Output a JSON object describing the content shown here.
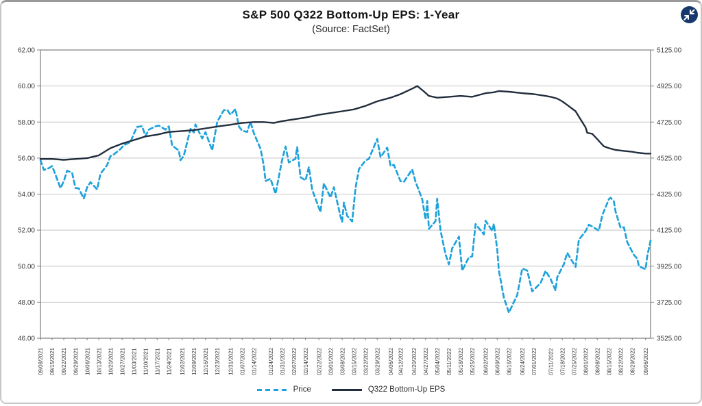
{
  "colors": {
    "grid": "#c3c3c3",
    "axis": "#7d7d7d",
    "tick_text": "#3b3b3b",
    "price": "#1EA2DB",
    "eps": "#222E3E",
    "icon_bg": "#17386E"
  },
  "controls": {
    "collapse_tooltip": "collapse"
  },
  "legend": [
    {
      "label": "Price",
      "style": "dashed",
      "color": "#1EA2DB"
    },
    {
      "label": "Q322 Bottom-Up EPS",
      "style": "solid",
      "color": "#222E3E"
    }
  ],
  "chart_data": {
    "type": "line",
    "title": "S&P 500 Q322 Bottom-Up EPS: 1-Year",
    "subtitle": "(Source: FactSet)",
    "grid": "horizontal",
    "legend_position": "bottom",
    "x_axis": {
      "range": [
        "09/08/2021",
        "09/09/2022"
      ],
      "ticks": [
        "09/08/2021",
        "09/15/2021",
        "09/22/2021",
        "09/29/2021",
        "10/06/2021",
        "10/13/2021",
        "10/20/2021",
        "10/27/2021",
        "11/03/2021",
        "11/10/2021",
        "11/17/2021",
        "11/24/2021",
        "12/02/2021",
        "12/09/2021",
        "12/16/2021",
        "12/23/2021",
        "12/31/2021",
        "01/07/2022",
        "01/14/2022",
        "01/24/2022",
        "01/31/2022",
        "02/07/2022",
        "02/14/2022",
        "02/22/2022",
        "03/01/2022",
        "03/08/2022",
        "03/15/2022",
        "03/22/2022",
        "03/29/2022",
        "04/06/2022",
        "04/12/2022",
        "04/20/2022",
        "04/27/2022",
        "05/04/2022",
        "05/11/2022",
        "05/18/2022",
        "05/25/2022",
        "06/02/2022",
        "06/09/2022",
        "06/16/2022",
        "06/24/2022",
        "07/01/2022",
        "07/11/2022",
        "07/18/2022",
        "07/25/2022",
        "08/01/2022",
        "08/08/2022",
        "08/15/2022",
        "08/22/2022",
        "08/29/2022",
        "09/06/2022"
      ]
    },
    "y_left": {
      "series": "Q322 Bottom-Up EPS",
      "range": [
        46,
        62
      ],
      "ticks": [
        "62.00",
        "60.00",
        "58.00",
        "56.00",
        "54.00",
        "52.00",
        "50.00",
        "48.00",
        "46.00"
      ]
    },
    "y_right": {
      "series": "Price",
      "range": [
        3525,
        5125
      ],
      "ticks": [
        "5125.00",
        "4925.00",
        "4725.00",
        "4525.00",
        "4325.00",
        "4125.00",
        "3925.00",
        "3725.00",
        "3525.00"
      ]
    },
    "series": [
      {
        "name": "Price",
        "axis": "right",
        "color": "#1EA2DB",
        "dash": true,
        "width": 2.7,
        "points": [
          [
            "09/08/2021",
            4514
          ],
          [
            "09/10/2021",
            4459
          ],
          [
            "09/13/2021",
            4469
          ],
          [
            "09/15/2021",
            4481
          ],
          [
            "09/17/2021",
            4433
          ],
          [
            "09/20/2021",
            4358
          ],
          [
            "09/22/2021",
            4396
          ],
          [
            "09/24/2021",
            4455
          ],
          [
            "09/27/2021",
            4443
          ],
          [
            "09/29/2021",
            4359
          ],
          [
            "10/01/2021",
            4357
          ],
          [
            "10/04/2021",
            4300
          ],
          [
            "10/06/2021",
            4363
          ],
          [
            "10/08/2021",
            4391
          ],
          [
            "10/12/2021",
            4351
          ],
          [
            "10/14/2021",
            4438
          ],
          [
            "10/18/2021",
            4486
          ],
          [
            "10/20/2021",
            4536
          ],
          [
            "10/22/2021",
            4545
          ],
          [
            "10/26/2021",
            4575
          ],
          [
            "10/28/2021",
            4596
          ],
          [
            "11/01/2021",
            4614
          ],
          [
            "11/03/2021",
            4660
          ],
          [
            "11/05/2021",
            4698
          ],
          [
            "11/08/2021",
            4702
          ],
          [
            "11/10/2021",
            4647
          ],
          [
            "11/12/2021",
            4683
          ],
          [
            "11/16/2021",
            4701
          ],
          [
            "11/18/2021",
            4705
          ],
          [
            "11/22/2021",
            4683
          ],
          [
            "11/24/2021",
            4701
          ],
          [
            "11/26/2021",
            4595
          ],
          [
            "11/30/2021",
            4567
          ],
          [
            "12/01/2021",
            4513
          ],
          [
            "12/03/2021",
            4538
          ],
          [
            "12/07/2021",
            4687
          ],
          [
            "12/09/2021",
            4667
          ],
          [
            "12/10/2021",
            4712
          ],
          [
            "12/14/2021",
            4634
          ],
          [
            "12/16/2021",
            4669
          ],
          [
            "12/20/2021",
            4568
          ],
          [
            "12/23/2021",
            4726
          ],
          [
            "12/27/2021",
            4791
          ],
          [
            "12/29/2021",
            4793
          ],
          [
            "12/31/2021",
            4766
          ],
          [
            "01/03/2022",
            4797
          ],
          [
            "01/05/2022",
            4701
          ],
          [
            "01/07/2022",
            4677
          ],
          [
            "01/10/2022",
            4670
          ],
          [
            "01/12/2022",
            4726
          ],
          [
            "01/14/2022",
            4663
          ],
          [
            "01/18/2022",
            4577
          ],
          [
            "01/20/2022",
            4483
          ],
          [
            "01/21/2022",
            4398
          ],
          [
            "01/24/2022",
            4410
          ],
          [
            "01/27/2022",
            4327
          ],
          [
            "01/31/2022",
            4516
          ],
          [
            "02/02/2022",
            4589
          ],
          [
            "02/04/2022",
            4501
          ],
          [
            "02/08/2022",
            4521
          ],
          [
            "02/09/2022",
            4587
          ],
          [
            "02/11/2022",
            4419
          ],
          [
            "02/14/2022",
            4401
          ],
          [
            "02/16/2022",
            4475
          ],
          [
            "02/18/2022",
            4349
          ],
          [
            "02/23/2022",
            4225
          ],
          [
            "02/25/2022",
            4385
          ],
          [
            "03/01/2022",
            4306
          ],
          [
            "03/03/2022",
            4363
          ],
          [
            "03/07/2022",
            4201
          ],
          [
            "03/08/2022",
            4170
          ],
          [
            "03/09/2022",
            4278
          ],
          [
            "03/11/2022",
            4204
          ],
          [
            "03/14/2022",
            4173
          ],
          [
            "03/16/2022",
            4358
          ],
          [
            "03/18/2022",
            4463
          ],
          [
            "03/22/2022",
            4512
          ],
          [
            "03/24/2022",
            4520
          ],
          [
            "03/29/2022",
            4631
          ],
          [
            "03/31/2022",
            4530
          ],
          [
            "04/04/2022",
            4583
          ],
          [
            "04/06/2022",
            4481
          ],
          [
            "04/08/2022",
            4488
          ],
          [
            "04/12/2022",
            4397
          ],
          [
            "04/14/2022",
            4393
          ],
          [
            "04/19/2022",
            4462
          ],
          [
            "04/21/2022",
            4394
          ],
          [
            "04/25/2022",
            4296
          ],
          [
            "04/27/2022",
            4184
          ],
          [
            "04/28/2022",
            4287
          ],
          [
            "04/29/2022",
            4132
          ],
          [
            "05/03/2022",
            4175
          ],
          [
            "05/04/2022",
            4300
          ],
          [
            "05/06/2022",
            4123
          ],
          [
            "05/09/2022",
            3991
          ],
          [
            "05/11/2022",
            3935
          ],
          [
            "05/13/2022",
            4024
          ],
          [
            "05/17/2022",
            4089
          ],
          [
            "05/19/2022",
            3900
          ],
          [
            "05/23/2022",
            3974
          ],
          [
            "05/25/2022",
            3979
          ],
          [
            "05/27/2022",
            4158
          ],
          [
            "06/01/2022",
            4101
          ],
          [
            "06/02/2022",
            4177
          ],
          [
            "06/06/2022",
            4121
          ],
          [
            "06/07/2022",
            4160
          ],
          [
            "06/09/2022",
            4017
          ],
          [
            "06/10/2022",
            3901
          ],
          [
            "06/13/2022",
            3750
          ],
          [
            "06/16/2022",
            3667
          ],
          [
            "06/21/2022",
            3765
          ],
          [
            "06/24/2022",
            3912
          ],
          [
            "06/27/2022",
            3900
          ],
          [
            "06/30/2022",
            3785
          ],
          [
            "07/05/2022",
            3831
          ],
          [
            "07/08/2022",
            3899
          ],
          [
            "07/11/2022",
            3854
          ],
          [
            "07/14/2022",
            3790
          ],
          [
            "07/15/2022",
            3863
          ],
          [
            "07/19/2022",
            3937
          ],
          [
            "07/21/2022",
            3999
          ],
          [
            "07/26/2022",
            3921
          ],
          [
            "07/28/2022",
            4072
          ],
          [
            "08/01/2022",
            4119
          ],
          [
            "08/03/2022",
            4155
          ],
          [
            "08/05/2022",
            4145
          ],
          [
            "08/09/2022",
            4122
          ],
          [
            "08/11/2022",
            4207
          ],
          [
            "08/15/2022",
            4297
          ],
          [
            "08/16/2022",
            4305
          ],
          [
            "08/18/2022",
            4284
          ],
          [
            "08/19/2022",
            4228
          ],
          [
            "08/22/2022",
            4138
          ],
          [
            "08/24/2022",
            4141
          ],
          [
            "08/26/2022",
            4058
          ],
          [
            "08/30/2022",
            3987
          ],
          [
            "09/01/2022",
            3967
          ],
          [
            "09/02/2022",
            3924
          ],
          [
            "09/06/2022",
            3908
          ],
          [
            "09/07/2022",
            3980
          ],
          [
            "09/09/2022",
            4067
          ]
        ]
      },
      {
        "name": "Q322 Bottom-Up EPS",
        "axis": "left",
        "color": "#222E3E",
        "dash": false,
        "width": 2.4,
        "points": [
          [
            "09/08/2021",
            55.95
          ],
          [
            "09/15/2021",
            55.95
          ],
          [
            "09/22/2021",
            55.9
          ],
          [
            "09/29/2021",
            55.95
          ],
          [
            "10/06/2021",
            56.0
          ],
          [
            "10/13/2021",
            56.15
          ],
          [
            "10/20/2021",
            56.55
          ],
          [
            "10/27/2021",
            56.8
          ],
          [
            "11/03/2021",
            57.0
          ],
          [
            "11/10/2021",
            57.2
          ],
          [
            "11/17/2021",
            57.3
          ],
          [
            "11/24/2021",
            57.45
          ],
          [
            "12/02/2021",
            57.5
          ],
          [
            "12/09/2021",
            57.55
          ],
          [
            "12/16/2021",
            57.65
          ],
          [
            "12/23/2021",
            57.75
          ],
          [
            "12/31/2021",
            57.85
          ],
          [
            "01/07/2022",
            57.95
          ],
          [
            "01/14/2022",
            58.0
          ],
          [
            "01/20/2022",
            58.0
          ],
          [
            "01/26/2022",
            57.95
          ],
          [
            "01/31/2022",
            58.05
          ],
          [
            "02/07/2022",
            58.15
          ],
          [
            "02/14/2022",
            58.25
          ],
          [
            "02/22/2022",
            58.4
          ],
          [
            "03/01/2022",
            58.5
          ],
          [
            "03/08/2022",
            58.6
          ],
          [
            "03/15/2022",
            58.7
          ],
          [
            "03/22/2022",
            58.9
          ],
          [
            "03/29/2022",
            59.15
          ],
          [
            "04/06/2022",
            59.35
          ],
          [
            "04/12/2022",
            59.55
          ],
          [
            "04/20/2022",
            59.9
          ],
          [
            "04/22/2022",
            60.0
          ],
          [
            "04/26/2022",
            59.7
          ],
          [
            "04/29/2022",
            59.45
          ],
          [
            "05/04/2022",
            59.35
          ],
          [
            "05/11/2022",
            59.4
          ],
          [
            "05/18/2022",
            59.45
          ],
          [
            "05/25/2022",
            59.4
          ],
          [
            "06/02/2022",
            59.6
          ],
          [
            "06/07/2022",
            59.65
          ],
          [
            "06/10/2022",
            59.72
          ],
          [
            "06/16/2022",
            59.68
          ],
          [
            "06/24/2022",
            59.6
          ],
          [
            "07/01/2022",
            59.55
          ],
          [
            "07/08/2022",
            59.45
          ],
          [
            "07/11/2022",
            59.4
          ],
          [
            "07/15/2022",
            59.3
          ],
          [
            "07/18/2022",
            59.15
          ],
          [
            "07/21/2022",
            58.95
          ],
          [
            "07/26/2022",
            58.6
          ],
          [
            "07/28/2022",
            58.3
          ],
          [
            "08/01/2022",
            57.7
          ],
          [
            "08/02/2022",
            57.4
          ],
          [
            "08/05/2022",
            57.35
          ],
          [
            "08/08/2022",
            57.05
          ],
          [
            "08/10/2022",
            56.85
          ],
          [
            "08/12/2022",
            56.65
          ],
          [
            "08/15/2022",
            56.55
          ],
          [
            "08/19/2022",
            56.45
          ],
          [
            "08/24/2022",
            56.4
          ],
          [
            "08/29/2022",
            56.35
          ],
          [
            "09/01/2022",
            56.3
          ],
          [
            "09/06/2022",
            56.25
          ],
          [
            "09/09/2022",
            56.25
          ]
        ]
      }
    ]
  }
}
